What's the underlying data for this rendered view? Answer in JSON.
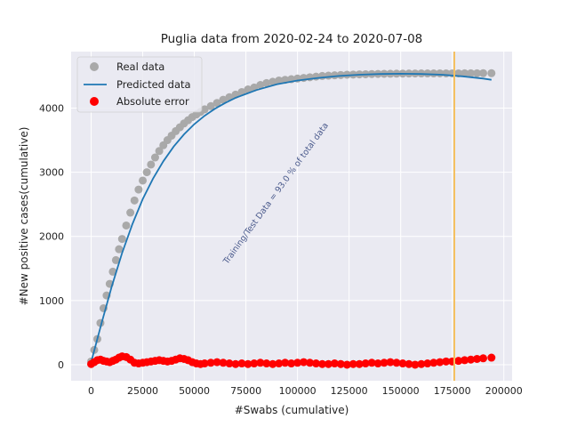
{
  "chart_data": {
    "type": "scatter",
    "title": "Puglia data  from 2020-02-24 to 2020-07-08",
    "xlabel": "#Swabs (cumulative)",
    "ylabel": "#New positive cases(cumulative)",
    "xlim": [
      -9700,
      204000
    ],
    "ylim": [
      -250,
      4880
    ],
    "grid": true,
    "legend_position": "top-left",
    "xticks": [
      0,
      25000,
      50000,
      75000,
      100000,
      125000,
      150000,
      175000,
      200000
    ],
    "yticks": [
      0,
      1000,
      2000,
      3000,
      4000
    ],
    "xtick_labels": [
      "0",
      "25000",
      "50000",
      "75000",
      "100000",
      "125000",
      "150000",
      "175000",
      "200000"
    ],
    "ytick_labels": [
      "0",
      "1000",
      "2000",
      "3000",
      "4000"
    ],
    "vline_x": 176000,
    "annotation": "Training/Test Data = 93.0 % of total data",
    "colors": {
      "plot_bg": "#eaeaf2",
      "grid": "#ffffff",
      "real": "#a9a9a9",
      "predicted": "#1f77b4",
      "error": "#ff0000",
      "vline": "#f5c060"
    },
    "series": [
      {
        "name": "Real data",
        "kind": "scatter",
        "x": [
          0,
          1500,
          3000,
          4500,
          6000,
          7500,
          9000,
          10500,
          12000,
          13500,
          15000,
          17000,
          19000,
          21000,
          23000,
          25000,
          27000,
          29000,
          31000,
          33000,
          35000,
          37000,
          39000,
          41000,
          43000,
          45000,
          47000,
          49000,
          51000,
          53000,
          55000,
          58000,
          61000,
          64000,
          67000,
          70000,
          73000,
          76000,
          79000,
          82000,
          85000,
          88000,
          91000,
          94000,
          97000,
          100000,
          103000,
          106000,
          109000,
          112000,
          115000,
          118000,
          121000,
          124000,
          127000,
          130000,
          133000,
          136000,
          139000,
          142000,
          145000,
          148000,
          151000,
          154000,
          157000,
          160000,
          163000,
          166000,
          169000,
          172000,
          175000,
          178000,
          181000,
          184000,
          187000,
          190000,
          194000
        ],
        "y": [
          50,
          230,
          400,
          650,
          880,
          1080,
          1260,
          1450,
          1630,
          1800,
          1960,
          2170,
          2370,
          2560,
          2730,
          2870,
          3000,
          3120,
          3230,
          3330,
          3420,
          3500,
          3570,
          3640,
          3700,
          3760,
          3810,
          3860,
          3900,
          3940,
          3980,
          4030,
          4080,
          4130,
          4170,
          4210,
          4250,
          4290,
          4320,
          4360,
          4390,
          4410,
          4430,
          4440,
          4450,
          4460,
          4470,
          4480,
          4490,
          4500,
          4505,
          4510,
          4515,
          4520,
          4522,
          4525,
          4527,
          4530,
          4532,
          4534,
          4535,
          4536,
          4537,
          4538,
          4539,
          4540,
          4540,
          4540,
          4541,
          4541,
          4541,
          4541,
          4542,
          4542,
          4542,
          4543,
          4543
        ]
      },
      {
        "name": "Predicted data",
        "kind": "line",
        "x": [
          0,
          5000,
          10000,
          15000,
          20000,
          25000,
          30000,
          35000,
          40000,
          45000,
          50000,
          55000,
          60000,
          65000,
          70000,
          75000,
          80000,
          90000,
          100000,
          110000,
          120000,
          130000,
          140000,
          150000,
          160000,
          170000,
          180000,
          190000,
          194000
        ],
        "y": [
          40,
          640,
          1220,
          1740,
          2190,
          2580,
          2900,
          3170,
          3400,
          3590,
          3750,
          3880,
          3990,
          4080,
          4160,
          4220,
          4280,
          4370,
          4430,
          4470,
          4500,
          4520,
          4530,
          4535,
          4530,
          4520,
          4495,
          4460,
          4440
        ]
      },
      {
        "name": "Absolute error",
        "kind": "scatter",
        "x": [
          0,
          1500,
          3000,
          4500,
          6000,
          7500,
          9000,
          10500,
          12000,
          13500,
          15000,
          17000,
          19000,
          21000,
          23000,
          25000,
          27000,
          29000,
          31000,
          33000,
          35000,
          37000,
          39000,
          41000,
          43000,
          45000,
          47000,
          49000,
          51000,
          53000,
          55000,
          58000,
          61000,
          64000,
          67000,
          70000,
          73000,
          76000,
          79000,
          82000,
          85000,
          88000,
          91000,
          94000,
          97000,
          100000,
          103000,
          106000,
          109000,
          112000,
          115000,
          118000,
          121000,
          124000,
          127000,
          130000,
          133000,
          136000,
          139000,
          142000,
          145000,
          148000,
          151000,
          154000,
          157000,
          160000,
          163000,
          166000,
          169000,
          172000,
          175000,
          178000,
          181000,
          184000,
          187000,
          190000,
          194000
        ],
        "y": [
          10,
          40,
          70,
          80,
          60,
          50,
          40,
          60,
          80,
          110,
          130,
          120,
          80,
          30,
          20,
          30,
          40,
          50,
          60,
          70,
          60,
          50,
          60,
          80,
          100,
          90,
          70,
          40,
          20,
          10,
          20,
          30,
          40,
          30,
          20,
          10,
          20,
          10,
          20,
          30,
          20,
          10,
          20,
          30,
          20,
          30,
          40,
          30,
          20,
          10,
          10,
          20,
          10,
          0,
          10,
          10,
          20,
          30,
          20,
          30,
          40,
          30,
          20,
          10,
          0,
          10,
          20,
          30,
          40,
          50,
          50,
          60,
          70,
          80,
          90,
          100,
          110
        ]
      }
    ]
  }
}
